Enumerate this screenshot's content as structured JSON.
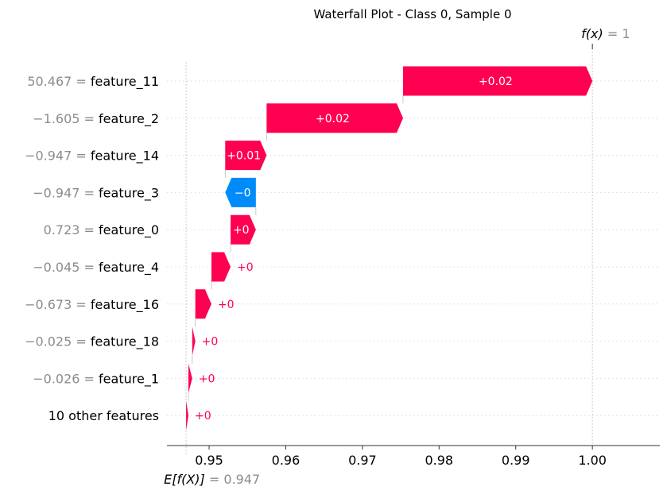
{
  "chart_data": {
    "type": "waterfall",
    "title": "Waterfall Plot - Class 0, Sample 0",
    "base_value": 0.947,
    "base_label": "E[f(X)]",
    "base_value_text": "= 0.947",
    "output_value": 1,
    "output_label": "f(x)",
    "output_value_text": "= 1",
    "xlim": [
      0.9445,
      1.0088
    ],
    "xticks": [
      0.95,
      0.96,
      0.97,
      0.98,
      0.99,
      1.0
    ],
    "xtick_labels": [
      "0.95",
      "0.96",
      "0.97",
      "0.98",
      "0.99",
      "1.00"
    ],
    "colors": {
      "positive": "#ff0051",
      "negative": "#008bfb",
      "value_text": "#8c8c8c",
      "grid": "#cccccc"
    },
    "features": [
      {
        "value": "50.467 =",
        "name": "feature_11",
        "start": 0.9753,
        "end": 1.0,
        "label": "+0.02",
        "sign": "positive",
        "label_inside": true
      },
      {
        "value": "−1.605 =",
        "name": "feature_2",
        "start": 0.9575,
        "end": 0.9753,
        "label": "+0.02",
        "sign": "positive",
        "label_inside": true
      },
      {
        "value": "−0.947 =",
        "name": "feature_14",
        "start": 0.9521,
        "end": 0.9575,
        "label": "+0.01",
        "sign": "positive",
        "label_inside": true
      },
      {
        "value": "−0.947 =",
        "name": "feature_3",
        "start": 0.9561,
        "end": 0.9521,
        "label": "−0",
        "sign": "negative",
        "label_inside": true
      },
      {
        "value": "0.723 =",
        "name": "feature_0",
        "start": 0.9528,
        "end": 0.9561,
        "label": "+0",
        "sign": "positive",
        "label_inside": true
      },
      {
        "value": "−0.045 =",
        "name": "feature_4",
        "start": 0.9503,
        "end": 0.9528,
        "label": "+0",
        "sign": "positive",
        "label_inside": false
      },
      {
        "value": "−0.673 =",
        "name": "feature_16",
        "start": 0.9482,
        "end": 0.9503,
        "label": "+0",
        "sign": "positive",
        "label_inside": false
      },
      {
        "value": "−0.025 =",
        "name": "feature_18",
        "start": 0.9478,
        "end": 0.9482,
        "label": "+0",
        "sign": "positive",
        "label_inside": false
      },
      {
        "value": "−0.026 =",
        "name": "feature_1",
        "start": 0.9473,
        "end": 0.9478,
        "label": "+0",
        "sign": "positive",
        "label_inside": false
      },
      {
        "value": "",
        "name": "10 other features",
        "start": 0.947,
        "end": 0.9473,
        "label": "+0",
        "sign": "positive",
        "label_inside": false
      }
    ]
  }
}
